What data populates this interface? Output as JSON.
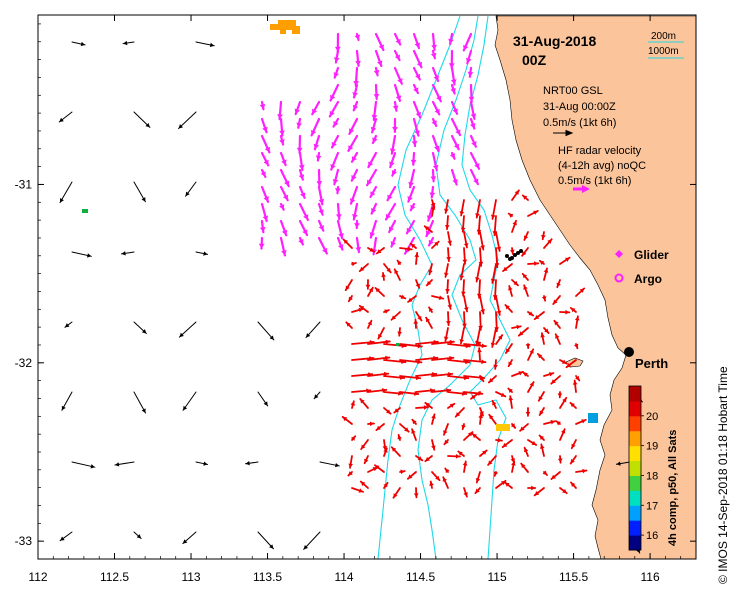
{
  "title": {
    "date": "31-Aug-2018",
    "time": "00Z"
  },
  "scale_bar": {
    "label_200": "200m",
    "label_1000": "1000m"
  },
  "model_legend": {
    "line1": "NRT00 GSL",
    "line2": "31-Aug 00:00Z",
    "line3": "0.5m/s (1kt 6h)"
  },
  "radar_legend": {
    "line1": "HF radar velocity",
    "line2": "(4-12h avg) noQC",
    "line3": "0.5m/s (1kt 6h)"
  },
  "markers": {
    "glider": "Glider",
    "argo": "Argo"
  },
  "city": {
    "name": "Perth",
    "lon": 115.86,
    "lat": -31.95
  },
  "axes": {
    "x_ticks": [
      "112",
      "112.5",
      "113",
      "113.5",
      "114",
      "114.5",
      "115",
      "115.5",
      "116"
    ],
    "y_ticks": [
      "-31",
      "-32",
      "-33"
    ],
    "lon_range": [
      112,
      116.3
    ],
    "lat_range": [
      -33.1,
      -30.05
    ]
  },
  "colorbar": {
    "title": "4h comp, p50, All Sats",
    "ticks": [
      "16",
      "17",
      "18",
      "19",
      "20"
    ],
    "range": [
      15.5,
      21
    ],
    "colors": [
      "#000080",
      "#0020ff",
      "#00a0ff",
      "#00e0c0",
      "#40d040",
      "#c0e000",
      "#ffe000",
      "#ffa000",
      "#ff4000",
      "#e00000",
      "#b00000"
    ]
  },
  "footer": {
    "credit": "© IMOS 14-Sep-2018 01:18 Hobart Time"
  },
  "colors": {
    "land": "#fbc49a",
    "bathymetry": "#20d8e8",
    "model_vectors": "#000000",
    "radar_magenta": "#ff20ff",
    "radar_red": "#ee0000",
    "sst_orange": "#ff9e00",
    "sst_green": "#10b040",
    "sst_yellow": "#ffc800",
    "sst_blue": "#00a0e0"
  }
}
